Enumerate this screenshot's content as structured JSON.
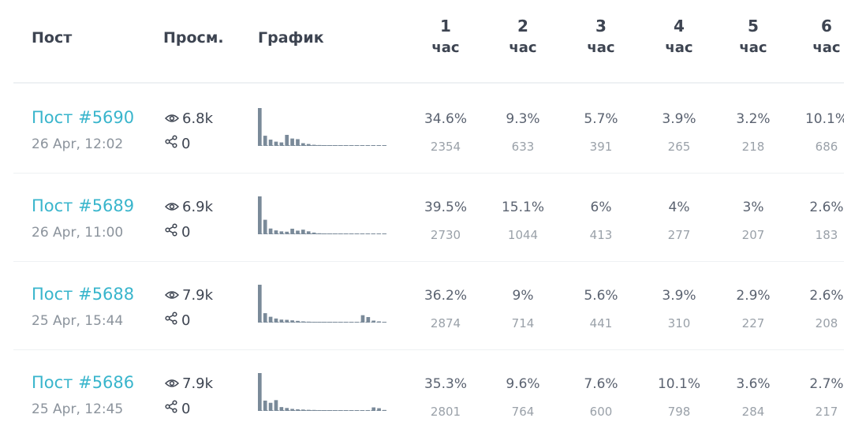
{
  "header": {
    "post": "Пост",
    "views": "Просм.",
    "chart": "График",
    "hours": [
      {
        "num": "1",
        "unit": "час"
      },
      {
        "num": "2",
        "unit": "час"
      },
      {
        "num": "3",
        "unit": "час"
      },
      {
        "num": "4",
        "unit": "час"
      },
      {
        "num": "5",
        "unit": "час"
      },
      {
        "num": "6",
        "unit": "час"
      }
    ]
  },
  "icons": {
    "views": "eye-icon",
    "shares": "share-icon"
  },
  "colors": {
    "link": "#39b5cc",
    "bar": "#7a8a99",
    "baseline": "#7a8a99"
  },
  "rows": [
    {
      "title": "Пост #5690",
      "date": "26 Apr, 12:02",
      "views": "6.8k",
      "shares": "0",
      "hours": [
        {
          "pct": "34.6%",
          "count": "2354"
        },
        {
          "pct": "9.3%",
          "count": "633"
        },
        {
          "pct": "5.7%",
          "count": "391"
        },
        {
          "pct": "3.9%",
          "count": "265"
        },
        {
          "pct": "3.2%",
          "count": "218"
        },
        {
          "pct": "10.1%",
          "count": "686"
        }
      ],
      "sparkline": [
        2354,
        633,
        391,
        265,
        218,
        686,
        460,
        420,
        170,
        120,
        70,
        55,
        35,
        25,
        18,
        14,
        12,
        12,
        15,
        18,
        22,
        25,
        20,
        18
      ]
    },
    {
      "title": "Пост #5689",
      "date": "26 Apr, 11:00",
      "views": "6.9k",
      "shares": "0",
      "hours": [
        {
          "pct": "39.5%",
          "count": "2730"
        },
        {
          "pct": "15.1%",
          "count": "1044"
        },
        {
          "pct": "6%",
          "count": "413"
        },
        {
          "pct": "4%",
          "count": "277"
        },
        {
          "pct": "3%",
          "count": "207"
        },
        {
          "pct": "2.6%",
          "count": "183"
        }
      ],
      "sparkline": [
        2730,
        1044,
        413,
        277,
        207,
        183,
        400,
        260,
        330,
        210,
        120,
        70,
        45,
        35,
        25,
        20,
        18,
        15,
        14,
        14,
        18,
        20,
        18,
        15
      ]
    },
    {
      "title": "Пост #5688",
      "date": "25 Apr, 15:44",
      "views": "7.9k",
      "shares": "0",
      "hours": [
        {
          "pct": "36.2%",
          "count": "2874"
        },
        {
          "pct": "9%",
          "count": "714"
        },
        {
          "pct": "5.6%",
          "count": "441"
        },
        {
          "pct": "3.9%",
          "count": "310"
        },
        {
          "pct": "2.9%",
          "count": "227"
        },
        {
          "pct": "2.6%",
          "count": "208"
        }
      ],
      "sparkline": [
        2874,
        714,
        441,
        310,
        227,
        208,
        170,
        130,
        90,
        70,
        55,
        45,
        40,
        35,
        30,
        28,
        28,
        30,
        32,
        560,
        420,
        150,
        90,
        60
      ]
    },
    {
      "title": "Пост #5686",
      "date": "25 Apr, 12:45",
      "views": "7.9k",
      "shares": "0",
      "hours": [
        {
          "pct": "35.3%",
          "count": "2801"
        },
        {
          "pct": "9.6%",
          "count": "764"
        },
        {
          "pct": "7.6%",
          "count": "600"
        },
        {
          "pct": "10.1%",
          "count": "798"
        },
        {
          "pct": "3.6%",
          "count": "284"
        },
        {
          "pct": "2.7%",
          "count": "217"
        }
      ],
      "sparkline": [
        2801,
        764,
        600,
        798,
        284,
        217,
        150,
        120,
        100,
        80,
        70,
        60,
        55,
        50,
        45,
        40,
        40,
        45,
        50,
        55,
        60,
        260,
        200,
        70
      ]
    }
  ]
}
